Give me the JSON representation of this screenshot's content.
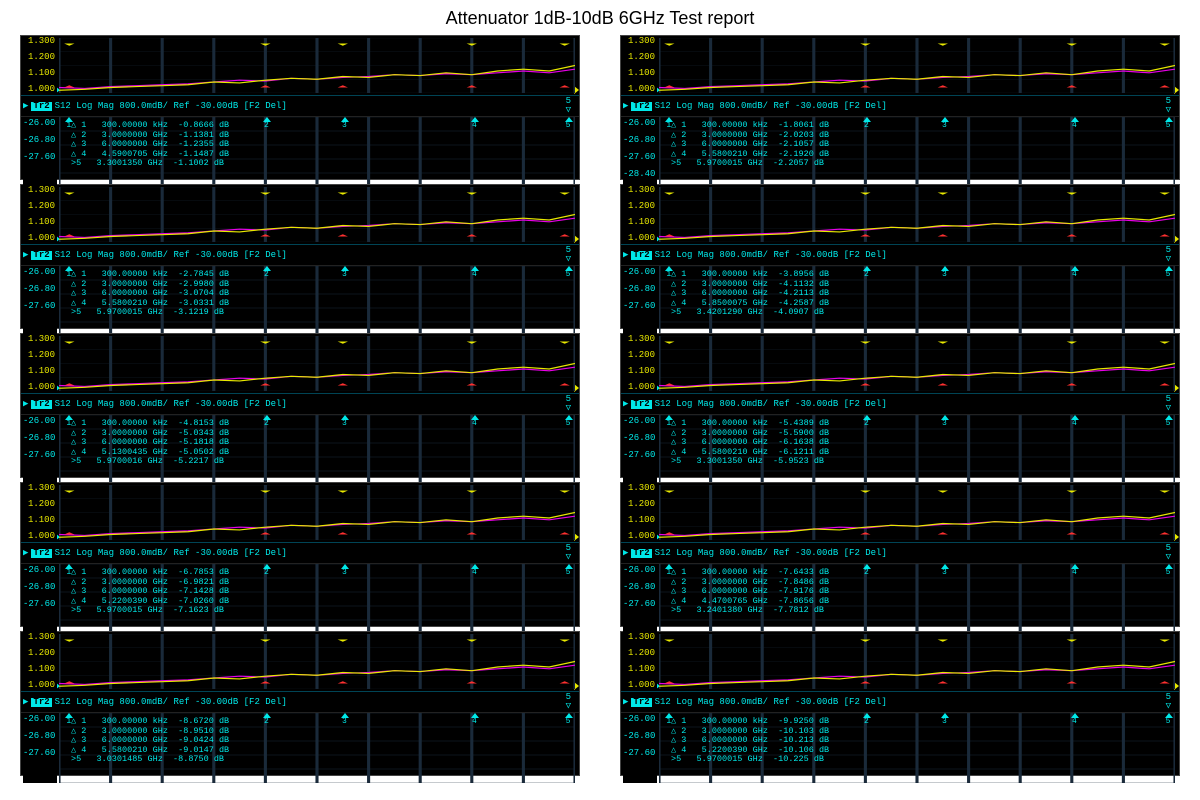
{
  "title": "Attenuator 1dB-10dB 6GHz Test report",
  "colors": {
    "bg": "#000000",
    "grid": "#1a2a3a",
    "yellow": "#e8e800",
    "magenta": "#e800e8",
    "cyan": "#00e8e8",
    "red": "#ff3030"
  },
  "top_chart": {
    "ylabels": [
      "1.300",
      "1.200",
      "1.100",
      "1.000"
    ],
    "ylim": [
      1.0,
      1.3
    ],
    "hgrid": 4,
    "vgrid": 10,
    "marker_x": [
      0.02,
      0.4,
      0.55,
      0.8,
      0.98
    ],
    "yellow_points": [
      1.015,
      1.02,
      1.03,
      1.035,
      1.04,
      1.045,
      1.06,
      1.055,
      1.07,
      1.08,
      1.075,
      1.09,
      1.085,
      1.1,
      1.095,
      1.11,
      1.1,
      1.12,
      1.13,
      1.12,
      1.15
    ],
    "magenta_points": [
      1.03,
      1.025,
      1.035,
      1.04,
      1.045,
      1.05,
      1.06,
      1.07,
      1.065,
      1.08,
      1.075,
      1.085,
      1.09,
      1.1,
      1.095,
      1.105,
      1.1,
      1.11,
      1.12,
      1.11,
      1.13
    ]
  },
  "tr2": {
    "label": "Tr2",
    "text": "S12 Log Mag 800.0mdB/ Ref -30.00dB [F2 Del]",
    "tail": "5"
  },
  "bot_chart": {
    "hgrid": 5,
    "vgrid": 10,
    "marker_x": [
      0.02,
      0.4,
      0.55,
      0.8,
      0.98
    ]
  },
  "panels": [
    {
      "bot_y": [
        "-26.00",
        "-26.80",
        "-27.60"
      ],
      "markers": [
        [
          "1",
          "300.00000",
          "kHz",
          "-0.8666",
          "dB"
        ],
        [
          "2",
          "3.0000000",
          "GHz",
          "-1.1381",
          "dB"
        ],
        [
          "3",
          "6.0000000",
          "GHz",
          "-1.2355",
          "dB"
        ],
        [
          "4",
          "4.5900705",
          "GHz",
          "-1.1487",
          "dB"
        ],
        [
          ">5",
          "3.3001350",
          "GHz",
          "-1.1002",
          "dB"
        ]
      ]
    },
    {
      "bot_y": [
        "-26.00",
        "-26.80",
        "-27.60",
        "-28.40"
      ],
      "markers": [
        [
          "1",
          "300.00000",
          "kHz",
          "-1.8061",
          "dB"
        ],
        [
          "2",
          "3.0000000",
          "GHz",
          "-2.0203",
          "dB"
        ],
        [
          "3",
          "6.0000000",
          "GHz",
          "-2.1057",
          "dB"
        ],
        [
          "4",
          "5.5800210",
          "GHz",
          "-2.1920",
          "dB"
        ],
        [
          ">5",
          "5.9700015",
          "GHz",
          "-2.2057",
          "dB"
        ]
      ]
    },
    {
      "bot_y": [
        "-26.00",
        "-26.80",
        "-27.60"
      ],
      "markers": [
        [
          "1",
          "300.00000",
          "kHz",
          "-2.7845",
          "dB"
        ],
        [
          "2",
          "3.0000000",
          "GHz",
          "-2.9980",
          "dB"
        ],
        [
          "3",
          "6.0000000",
          "GHz",
          "-3.0704",
          "dB"
        ],
        [
          "4",
          "5.5800210",
          "GHz",
          "-3.0331",
          "dB"
        ],
        [
          ">5",
          "5.9700015",
          "GHz",
          "-3.1219",
          "dB"
        ]
      ]
    },
    {
      "bot_y": [
        "-26.00",
        "-26.80",
        "-27.60"
      ],
      "markers": [
        [
          "1",
          "300.00000",
          "kHz",
          "-3.8956",
          "dB"
        ],
        [
          "2",
          "3.0000000",
          "GHz",
          "-4.1132",
          "dB"
        ],
        [
          "3",
          "6.0000000",
          "GHz",
          "-4.2113",
          "dB"
        ],
        [
          "4",
          "5.8500075",
          "GHz",
          "-4.2587",
          "dB"
        ],
        [
          ">5",
          "3.4201290",
          "GHz",
          "-4.0907",
          "dB"
        ]
      ]
    },
    {
      "bot_y": [
        "-26.00",
        "-26.80",
        "-27.60"
      ],
      "markers": [
        [
          "1",
          "300.00000",
          "kHz",
          "-4.8153",
          "dB"
        ],
        [
          "2",
          "3.0000000",
          "GHz",
          "-5.0343",
          "dB"
        ],
        [
          "3",
          "6.0000000",
          "GHz",
          "-5.1818",
          "dB"
        ],
        [
          "4",
          "5.1300435",
          "GHz",
          "-5.0502",
          "dB"
        ],
        [
          ">5",
          "5.9700016",
          "GHz",
          "-5.2217",
          "dB"
        ]
      ]
    },
    {
      "bot_y": [
        "-26.00",
        "-26.80",
        "-27.60"
      ],
      "markers": [
        [
          "1",
          "300.00000",
          "kHz",
          "-5.4389",
          "dB"
        ],
        [
          "2",
          "3.0000000",
          "GHz",
          "-5.5900",
          "dB"
        ],
        [
          "3",
          "6.0000000",
          "GHz",
          "-6.1638",
          "dB"
        ],
        [
          "4",
          "5.5800210",
          "GHz",
          "-6.1211",
          "dB"
        ],
        [
          ">5",
          "3.3001350",
          "GHz",
          "-5.9523",
          "dB"
        ]
      ]
    },
    {
      "bot_y": [
        "-26.00",
        "-26.80",
        "-27.60"
      ],
      "markers": [
        [
          "1",
          "300.00000",
          "kHz",
          "-6.7853",
          "dB"
        ],
        [
          "2",
          "3.0000000",
          "GHz",
          "-6.9821",
          "dB"
        ],
        [
          "3",
          "6.0000000",
          "GHz",
          "-7.1428",
          "dB"
        ],
        [
          "4",
          "5.2200390",
          "GHz",
          "-7.0260",
          "dB"
        ],
        [
          ">5",
          "5.9700015",
          "GHz",
          "-7.1623",
          "dB"
        ]
      ]
    },
    {
      "bot_y": [
        "-26.00",
        "-26.80",
        "-27.60"
      ],
      "markers": [
        [
          "1",
          "300.00000",
          "kHz",
          "-7.6433",
          "dB"
        ],
        [
          "2",
          "3.0000000",
          "GHz",
          "-7.8486",
          "dB"
        ],
        [
          "3",
          "6.0000000",
          "GHz",
          "-7.9176",
          "dB"
        ],
        [
          "4",
          "4.4700765",
          "GHz",
          "-7.8656",
          "dB"
        ],
        [
          ">5",
          "3.2401380",
          "GHz",
          "-7.7812",
          "dB"
        ]
      ]
    },
    {
      "bot_y": [
        "-26.00",
        "-26.80",
        "-27.60"
      ],
      "markers": [
        [
          "1",
          "300.00000",
          "kHz",
          "-8.6720",
          "dB"
        ],
        [
          "2",
          "3.0000000",
          "GHz",
          "-8.9510",
          "dB"
        ],
        [
          "3",
          "6.0000000",
          "GHz",
          "-9.0424",
          "dB"
        ],
        [
          "4",
          "5.5800210",
          "GHz",
          "-9.0147",
          "dB"
        ],
        [
          ">5",
          "3.0301485",
          "GHz",
          "-8.8750",
          "dB"
        ]
      ]
    },
    {
      "bot_y": [
        "-26.00",
        "-26.80",
        "-27.60"
      ],
      "markers": [
        [
          "1",
          "300.00000",
          "kHz",
          "-9.9250",
          "dB"
        ],
        [
          "2",
          "3.0000000",
          "GHz",
          "-10.103",
          "dB"
        ],
        [
          "3",
          "6.0000000",
          "GHz",
          "-10.213",
          "dB"
        ],
        [
          "4",
          "5.2200390",
          "GHz",
          "-10.106",
          "dB"
        ],
        [
          ">5",
          "5.9700015",
          "GHz",
          "-10.225",
          "dB"
        ]
      ]
    }
  ]
}
